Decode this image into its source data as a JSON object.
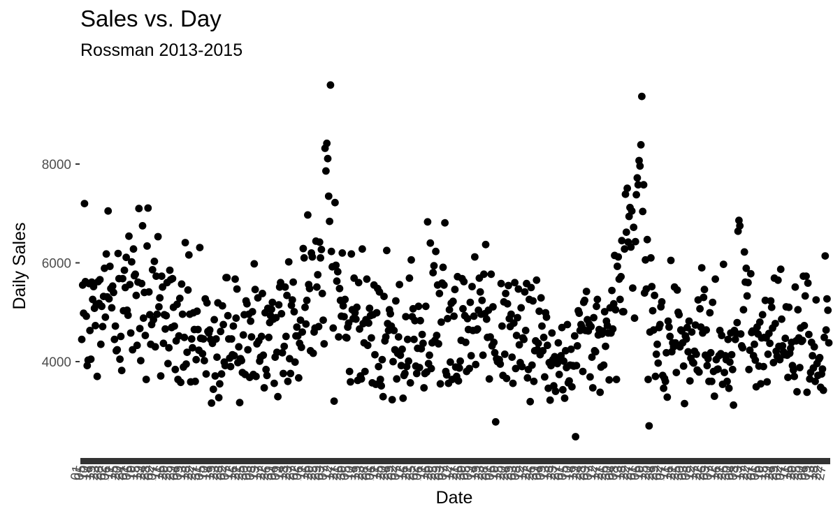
{
  "chart_data": {
    "type": "scatter",
    "title": "Sales vs. Day",
    "subtitle": "Rossman 2013-2015",
    "xlabel": "Date",
    "ylabel": "Daily Sales",
    "ylim": [
      2000,
      9800
    ],
    "y_ticks": [
      4000,
      6000,
      8000
    ],
    "y_tick_labels": [
      "4000",
      "6000",
      "8000"
    ],
    "x_tick_labels_note": "date tick labels overlap into an illegible dark band",
    "grid": false,
    "point_color": "#000000",
    "x_start": "2013-01-01",
    "x_end": "2015-07-31",
    "y": [
      4450,
      5550,
      4980,
      7200,
      5620,
      4920,
      3920,
      4030,
      5580,
      4630,
      4050,
      5610,
      5260,
      5520,
      5080,
      4730,
      5160,
      3700,
      5620,
      5180,
      5660,
      4350,
      5120,
      4710,
      5320,
      5890,
      4900,
      6180,
      5310,
      7050,
      5270,
      5930,
      5480,
      5090,
      5530,
      5400,
      4450,
      4720,
      4220,
      4240,
      6190,
      5680,
      4050,
      4510,
      3820,
      5680,
      5030,
      5850,
      5500,
      6110,
      5040,
      4940,
      6540,
      5560,
      4580,
      6020,
      4240,
      6280,
      5740,
      5770,
      5340,
      4330,
      5610,
      7100,
      4670,
      4020,
      5580,
      6750,
      4880,
      5400,
      4530,
      3640,
      6340,
      7110,
      5410,
      4950,
      4350,
      4750,
      5860,
      4850,
      6030,
      4300,
      5730,
      4960,
      6530,
      5110,
      5290,
      3710,
      5730,
      5510,
      4370,
      4950,
      4660,
      4930,
      5600,
      3960,
      4280,
      5850,
      5660,
      4690,
      5680,
      5100,
      4720,
      3840,
      4420,
      5160,
      3640,
      4520,
      5280,
      3580,
      5570,
      4960,
      3890,
      4490,
      6410,
      3950,
      4190,
      5450,
      6160,
      4960,
      3590,
      4460,
      4280,
      4990,
      4650,
      3600,
      4040,
      5020,
      4650,
      4230,
      6310,
      4470,
      4470,
      4160,
      4460,
      4020,
      5270,
      3750,
      5190,
      4610,
      4580,
      4640,
      4450,
      3160,
      4370,
      3440,
      4850,
      3710,
      4460,
      4090,
      5190,
      3270,
      3550,
      4610,
      3750,
      5130,
      4750,
      3990,
      3920,
      5700,
      5700,
      4930,
      4460,
      4070,
      3900,
      4460,
      4140,
      4720,
      4120,
      5670,
      4880,
      5470,
      3980,
      4300,
      3170,
      4060,
      4020,
      3780,
      4540,
      4950,
      3740,
      5230,
      5170,
      4240,
      4960,
      3680,
      4820,
      4500,
      5010,
      3740,
      5980,
      5460,
      3700,
      4360,
      5290,
      4420,
      4010,
      4090,
      4510,
      5380,
      4130,
      3470,
      4990,
      3840,
      3720,
      5080,
      4490,
      4790,
      4930,
      5060,
      5200,
      4860,
      3560,
      4090,
      4890,
      4190,
      3290,
      5150,
      5510,
      5600,
      4970,
      4180,
      3760,
      4310,
      5510,
      4510,
      5340,
      3600,
      6020,
      4060,
      3760,
      5140,
      5250,
      5610,
      5010,
      3990,
      4520,
      4700,
      4520,
      3670,
      4370,
      4840,
      4290,
      4600,
      6290,
      6100,
      5100,
      4760,
      5240,
      6970,
      5560,
      5480,
      4220,
      6200,
      6120,
      4170,
      4600,
      4680,
      6440,
      5510,
      5760,
      4710,
      6420,
      6100,
      6270,
      5380,
      4840,
      4360,
      8320,
      7860,
      8420,
      8110,
      7350,
      6840,
      9600,
      6230,
      5920,
      4680,
      3200,
      7220,
      5950,
      5630,
      5820,
      4500,
      5480,
      5240,
      4920,
      6200,
      5130,
      4910,
      5260,
      4490,
      4480,
      4700,
      4780,
      3800,
      3590,
      6180,
      5050,
      4870,
      5690,
      4990,
      4860,
      5100,
      3620,
      5600,
      4660,
      3710,
      3650,
      6280,
      4770,
      4380,
      3800,
      4850,
      5670,
      4330,
      4780,
      5080,
      4930,
      4480,
      3570,
      4950,
      5550,
      4140,
      3540,
      4990,
      5480,
      3900,
      5410,
      3640,
      3510,
      4040,
      3290,
      5320,
      4420,
      4500,
      6250,
      4770,
      4630,
      5050,
      4970,
      4720,
      3230,
      4000,
      4630,
      4240,
      5230,
      3650,
      4170,
      4500,
      5560,
      4130,
      3920,
      4250,
      3260,
      3720,
      3760,
      4910,
      3900,
      4450,
      4010,
      5690,
      3570,
      6060,
      4910,
      5070,
      4450,
      4830,
      3910,
      3760,
      4270,
      5120,
      3880,
      4830,
      4260,
      4550,
      4370,
      3470,
      3760,
      5120,
      3790,
      6830,
      3960,
      4130,
      6400,
      3860,
      4380,
      5800,
      5940,
      4430,
      6230,
      4530,
      5550,
      4360,
      5380,
      3550,
      4800,
      5590,
      5910,
      5550,
      6810,
      3800,
      3730,
      4870,
      3560,
      5050,
      3990,
      5180,
      3640,
      5220,
      4920,
      5460,
      3890,
      3700,
      5720,
      3610,
      3870,
      4010,
      4430,
      5680,
      5070,
      5620,
      4930,
      4390,
      3800,
      4870,
      4650,
      3860,
      5200,
      4120,
      5520,
      4630,
      4920,
      6120,
      3940,
      4640,
      4660,
      5040,
      5690,
      5410,
      4960,
      5240,
      4130,
      5770,
      4970,
      6370,
      4860,
      4490,
      5040,
      3650,
      4500,
      5770,
      4320,
      5110,
      4390,
      4180,
      2780,
      4060,
      4000,
      4030,
      4040,
      3950,
      5580,
      4720,
      3720,
      5210,
      4150,
      5380,
      3660,
      5170,
      5540,
      4870,
      4710,
      4960,
      4090,
      3560,
      4780,
      5600,
      3860,
      4530,
      4890,
      5470,
      4340,
      3980,
      5090,
      3900,
      4480,
      4450,
      5410,
      4630,
      5580,
      3670,
      3840,
      5260,
      3190,
      5500,
      3930,
      5230,
      3600,
      4220,
      4420,
      5650,
      4240,
      4370,
      5020,
      4140,
      5290,
      4720,
      4220,
      4490,
      3690,
      4990,
      4900,
      4330,
      3460,
      3980,
      3220,
      3920,
      4580,
      4040,
      3510,
      4100,
      3400,
      4000,
      3960,
      4380,
      3740,
      4050,
      4120,
      4690,
      3430,
      4010,
      3260,
      4220,
      3880,
      4750,
      3570,
      3610,
      3930,
      4250,
      3490,
      3920,
      3910,
      4520,
      2480,
      3920,
      4320,
      5030,
      4980,
      4630,
      4750,
      4700,
      3800,
      5200,
      5240,
      4630,
      5420,
      4850,
      4620,
      4760,
      3690,
      4710,
      4090,
      3470,
      4890,
      4220,
      4200,
      5120,
      5260,
      4540,
      4650,
      3380,
      3890,
      4560,
      4620,
      3930,
      5010,
      4310,
      4820,
      4730,
      4580,
      3630,
      5090,
      4580,
      5440,
      4660,
      5170,
      6150,
      5050,
      3640,
      5930,
      6120,
      5670,
      5260,
      5720,
      6450,
      5010,
      5010,
      6280,
      7390,
      6620,
      7510,
      6420,
      6940,
      7120,
      6320,
      7050,
      5490,
      6720,
      4880,
      6430,
      7380,
      7720,
      7580,
      8070,
      7960,
      8390,
      9370,
      7040,
      7580,
      5390,
      6060,
      5470,
      6470,
      3640,
      2700,
      4600,
      6100,
      5520,
      5030,
      4640,
      5340,
      3700,
      4150,
      4350,
      3970,
      4690,
      4750,
      5110,
      5210,
      3720,
      3460,
      3660,
      3600,
      4180,
      3280,
      4820,
      4700,
      4510,
      6050,
      4200,
      4380,
      4300,
      5510,
      4380,
      3780,
      5450,
      5000,
      4950,
      4300,
      4640,
      4620,
      4380,
      3910,
      3150,
      4520,
      4460,
      4690,
      4200,
      4820,
      3610,
      4070,
      4600,
      3990,
      3970,
      4210,
      4740,
      4150,
      3830,
      5250,
      3790,
      5070,
      4700,
      5900,
      4580,
      5300,
      5460,
      4130,
      4640,
      3920,
      4060,
      3600,
      4990,
      4180,
      3600,
      5200,
      3800,
      3300,
      5670,
      4040,
      3840,
      3850,
      4120,
      4630,
      4160,
      4530,
      3540,
      5970,
      3780,
      4120,
      4040,
      3600,
      4450,
      3460,
      3990,
      4580,
      4140,
      3840,
      3120,
      4630,
      4450,
      4570,
      4790,
      6640,
      6860,
      6750,
      4560,
      4320,
      4280,
      5050,
      6220,
      5610,
      5890,
      5330,
      5600,
      3840,
      4230,
      5780,
      4590,
      4620,
      4120,
      4350,
      4030,
      3490,
      4700,
      4560,
      3910,
      4800,
      3550,
      4480,
      4950,
      3900,
      4490,
      5240,
      4480,
      3590,
      4150,
      4570,
      4370,
      5230,
      5100,
      4680,
      3980,
      5690,
      4770,
      4210,
      4110,
      5650,
      4310,
      4040,
      5870,
      4860,
      4320,
      4200,
      4140,
      4470,
      5110,
      4130,
      3680,
      5100,
      4170,
      4270,
      4390,
      3920,
      3830,
      3700,
      5510,
      4420,
      3390,
      5050,
      4480,
      3880,
      4680,
      4410,
      4430,
      5730,
      4730,
      5330,
      5730,
      3380,
      5590,
      4550,
      3650,
      3780,
      4390,
      4120,
      3870,
      4300,
      3600,
      5250,
      3960,
      3720,
      4050,
      4080,
      3480,
      3750,
      3850,
      3420,
      4490,
      6140,
      4640,
      5270,
      5040,
      4380
    ]
  }
}
